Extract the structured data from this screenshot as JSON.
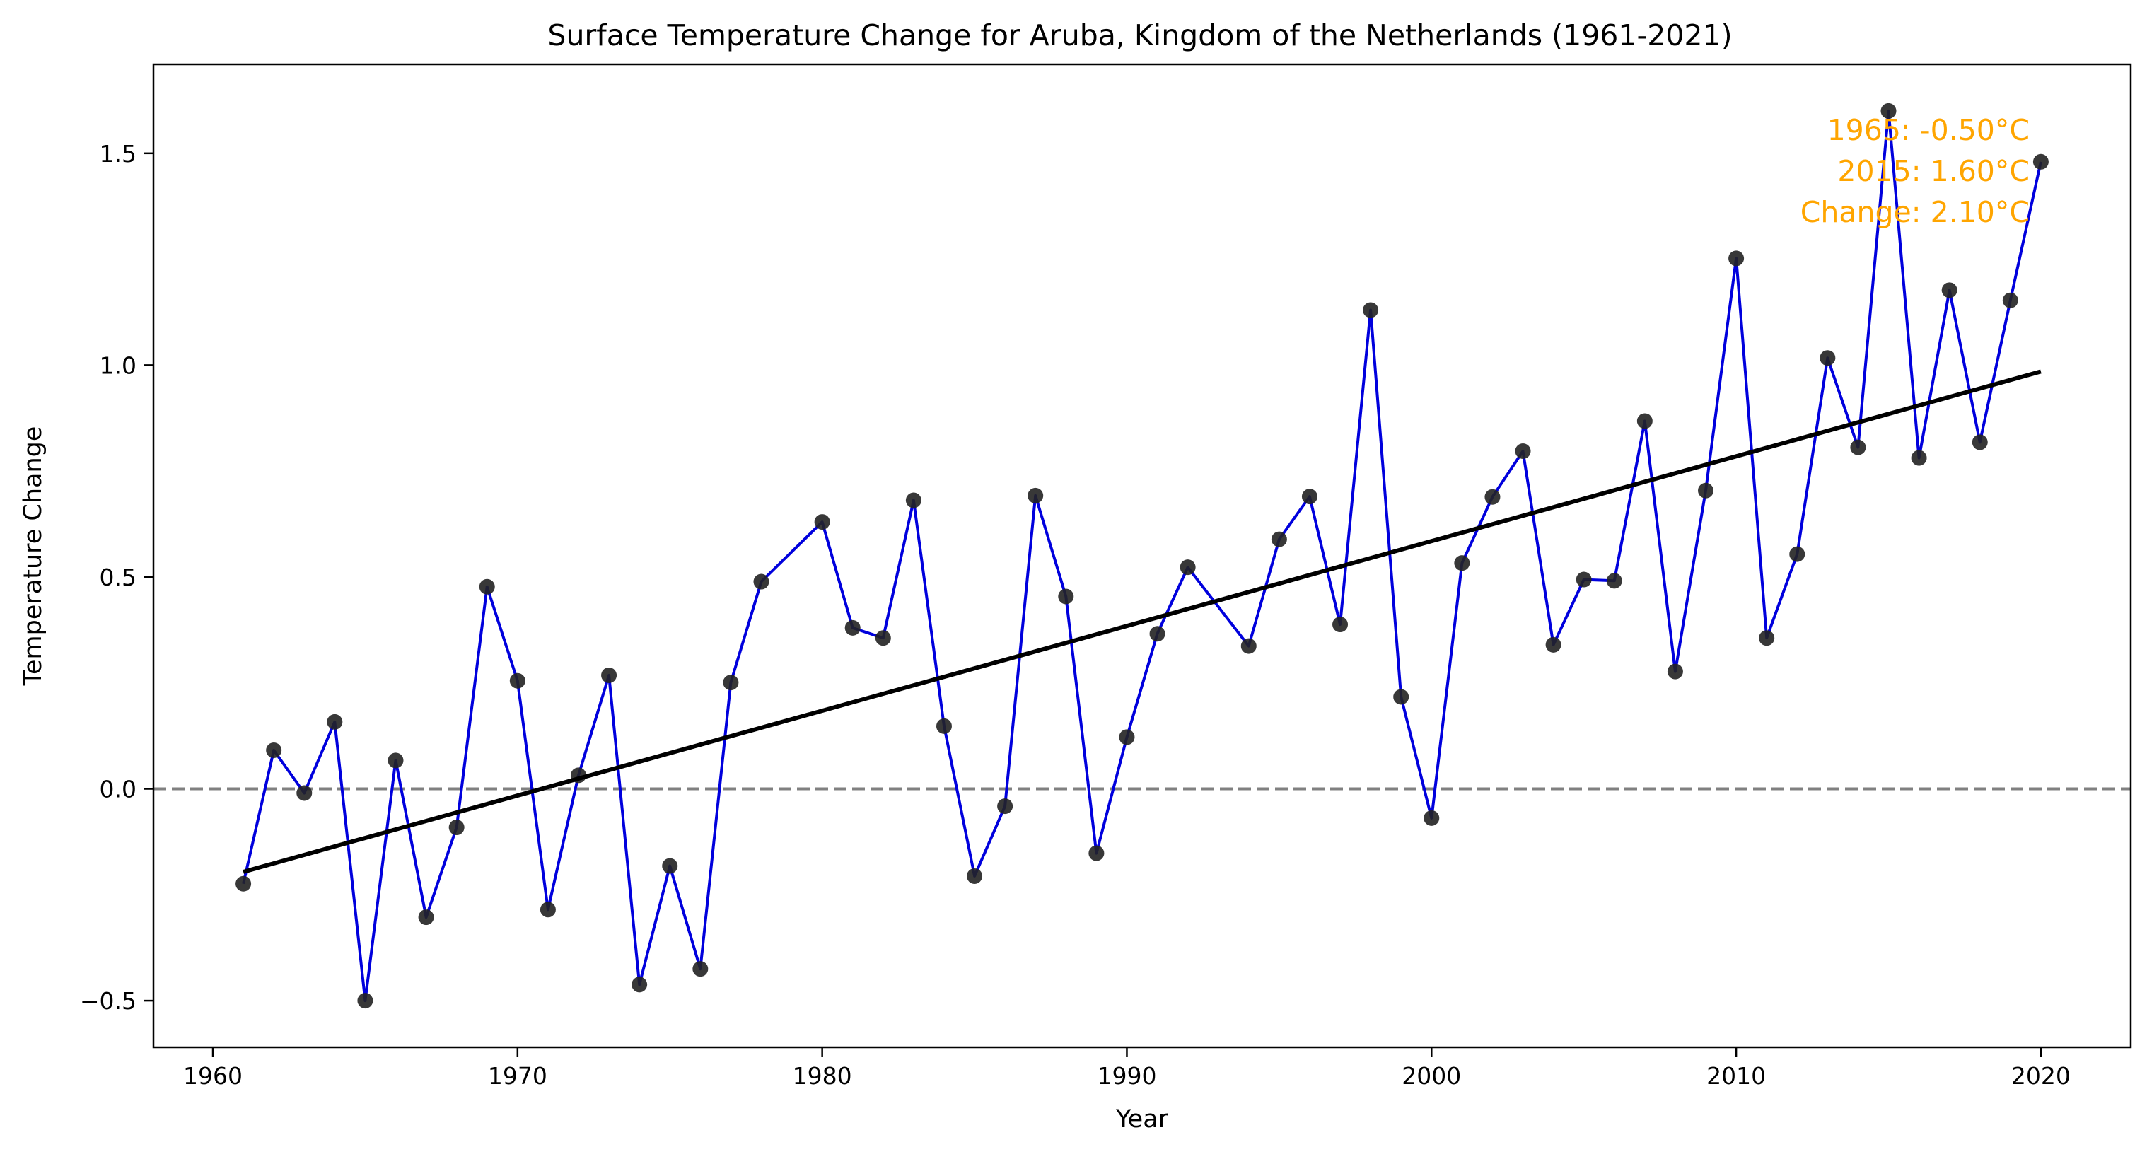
{
  "chart_data": {
    "type": "line",
    "title": "Surface Temperature Change for Aruba, Kingdom of the Netherlands (1961-2021)",
    "xlabel": "Year",
    "ylabel": "Temperature Change",
    "xlim": [
      1958.05,
      2022.95
    ],
    "ylim": [
      -0.61,
      1.71
    ],
    "x_ticks": [
      1960,
      1970,
      1980,
      1990,
      2000,
      2010,
      2020
    ],
    "y_ticks": [
      -0.5,
      0.0,
      0.5,
      1.0,
      1.5
    ],
    "y_tick_labels": [
      "−0.5",
      "0.0",
      "0.5",
      "1.0",
      "1.5"
    ],
    "grid": false,
    "zero_line": {
      "y": 0,
      "style": "dashed",
      "color": "#808080"
    },
    "series": [
      {
        "color": "#0000dd",
        "marker_color": "#222222",
        "x": [
          1961,
          1962,
          1963,
          1964,
          1965,
          1966,
          1967,
          1968,
          1969,
          1970,
          1971,
          1972,
          1973,
          1974,
          1975,
          1976,
          1977,
          1978,
          1980,
          1981,
          1982,
          1983,
          1984,
          1985,
          1986,
          1987,
          1988,
          1989,
          1990,
          1991,
          1992,
          1994,
          1995,
          1996,
          1997,
          1998,
          1999,
          2000,
          2001,
          2002,
          2003,
          2004,
          2005,
          2006,
          2007,
          2008,
          2009,
          2010,
          2011,
          2012,
          2013,
          2014,
          2015,
          2016,
          2017,
          2018,
          2019,
          2020
        ],
        "y": [
          -0.224,
          0.091,
          -0.01,
          0.158,
          -0.5,
          0.067,
          -0.303,
          -0.091,
          0.477,
          0.255,
          -0.285,
          0.032,
          0.268,
          -0.462,
          -0.182,
          -0.425,
          0.251,
          0.489,
          0.63,
          0.38,
          0.356,
          0.681,
          0.148,
          -0.206,
          -0.041,
          0.692,
          0.454,
          -0.152,
          0.122,
          0.366,
          0.523,
          0.337,
          0.589,
          0.69,
          0.388,
          1.13,
          0.217,
          -0.069,
          0.533,
          0.689,
          0.797,
          0.34,
          0.494,
          0.491,
          0.868,
          0.277,
          0.704,
          1.252,
          0.356,
          0.554,
          1.017,
          0.806,
          1.6,
          0.781,
          1.177,
          0.818,
          1.153,
          1.48
        ]
      }
    ],
    "trend_line": {
      "color": "#000000",
      "x": [
        1961,
        2020
      ],
      "y": [
        -0.196,
        0.985
      ]
    },
    "annotation": {
      "color": "#ffa500",
      "lines": [
        "1965: -0.50°C",
        "2015: 1.60°C",
        "Change: 2.10°C"
      ]
    }
  }
}
